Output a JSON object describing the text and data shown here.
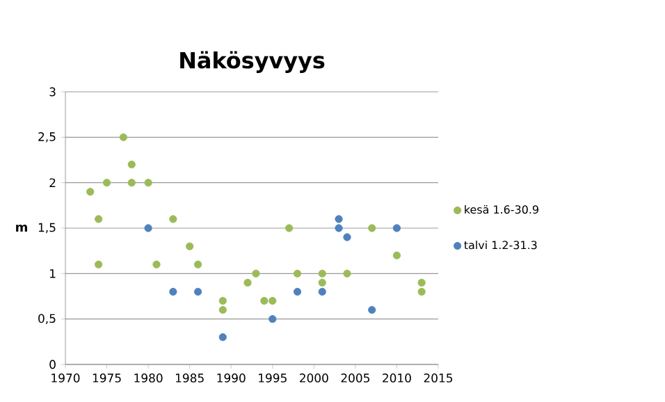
{
  "chart_data": {
    "type": "scatter",
    "title": "Näkösyvyys",
    "ylabel": "m",
    "xlim": [
      1970,
      2015
    ],
    "xticks": [
      1970,
      1975,
      1980,
      1985,
      1990,
      1995,
      2000,
      2005,
      2010,
      2015
    ],
    "ylim": [
      0,
      3
    ],
    "yticks": [
      0,
      {
        "value": 0.5,
        "label": "0,5"
      },
      1,
      {
        "value": 1.5,
        "label": "1,5"
      },
      2,
      {
        "value": 2.5,
        "label": "2,5"
      },
      3
    ],
    "grid": "y",
    "legend": "right",
    "marker": "circle",
    "series": [
      {
        "name": "kesä 1.6-30.9",
        "color": "#9bbb59",
        "x": [
          1973,
          1974,
          1974,
          1975,
          1977,
          1978,
          1978,
          1980,
          1981,
          1983,
          1985,
          1986,
          1989,
          1989,
          1992,
          1993,
          1994,
          1995,
          1997,
          1998,
          2001,
          2001,
          2004,
          2007,
          2010,
          2013,
          2013
        ],
        "values": [
          1.9,
          1.6,
          1.1,
          2.0,
          2.5,
          2.2,
          2.0,
          2.0,
          1.1,
          1.6,
          1.3,
          1.1,
          0.7,
          0.6,
          0.9,
          1.0,
          0.7,
          0.7,
          1.5,
          1.0,
          1.0,
          0.9,
          1.0,
          1.5,
          1.2,
          0.9,
          0.8
        ]
      },
      {
        "name": "talvi 1.2-31.3",
        "color": "#4f81bd",
        "x": [
          1980,
          1983,
          1986,
          1989,
          1995,
          1998,
          2001,
          2003,
          2003,
          2004,
          2007,
          2010
        ],
        "values": [
          1.5,
          0.8,
          0.8,
          0.3,
          0.5,
          0.8,
          0.8,
          1.6,
          1.5,
          1.4,
          0.6,
          1.5
        ]
      }
    ]
  }
}
